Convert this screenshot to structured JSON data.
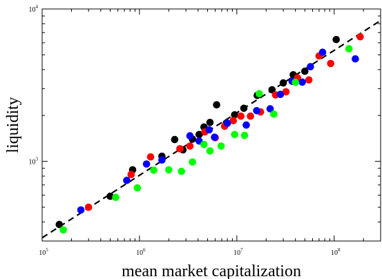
{
  "chart_data": {
    "type": "scatter",
    "xlabel": "mean market capitalization",
    "ylabel": "liquidity",
    "xscale": "log",
    "yscale": "log",
    "xlim": [
      100000,
      300000000
    ],
    "ylim": [
      300,
      10000
    ],
    "grid": false,
    "legend": "none",
    "x_tick_labels": [
      {
        "value": 100000,
        "base": "10",
        "exp": "5"
      },
      {
        "value": 1000000,
        "base": "10",
        "exp": "6"
      },
      {
        "value": 10000000,
        "base": "10",
        "exp": "7"
      },
      {
        "value": 100000000,
        "base": "10",
        "exp": "8"
      }
    ],
    "y_tick_labels": [
      {
        "value": 1000,
        "base": "10",
        "exp": "3"
      },
      {
        "value": 10000,
        "base": "10",
        "exp": "4"
      }
    ],
    "fit_line": {
      "style": "dashed",
      "color": "#000000",
      "points": [
        [
          100000,
          315
        ],
        [
          300000000,
          8400
        ]
      ]
    },
    "series": [
      {
        "color": "#000000",
        "points": [
          [
            150000,
            385
          ],
          [
            500000,
            590
          ],
          [
            850000,
            880
          ],
          [
            1700000,
            1080
          ],
          [
            2300000,
            1390
          ],
          [
            2800000,
            1190
          ],
          [
            3500000,
            1400
          ],
          [
            4100000,
            1500
          ],
          [
            4600000,
            1680
          ],
          [
            5300000,
            1800
          ],
          [
            6200000,
            2350
          ],
          [
            7800000,
            1780
          ],
          [
            9500000,
            2020
          ],
          [
            11800000,
            2230
          ],
          [
            16200000,
            2710
          ],
          [
            23000000,
            2950
          ],
          [
            30000000,
            3270
          ],
          [
            38000000,
            3700
          ],
          [
            50000000,
            3900
          ],
          [
            105000000,
            6300
          ]
        ]
      },
      {
        "color": "#ff0000",
        "points": [
          [
            300000,
            500
          ],
          [
            820000,
            820
          ],
          [
            1300000,
            1070
          ],
          [
            2600000,
            1210
          ],
          [
            3300000,
            1260
          ],
          [
            4700000,
            1560
          ],
          [
            6000000,
            1430
          ],
          [
            7500000,
            1700
          ],
          [
            9200000,
            1850
          ],
          [
            11000000,
            1980
          ],
          [
            13800000,
            1980
          ],
          [
            17500000,
            2110
          ],
          [
            25000000,
            2730
          ],
          [
            32000000,
            2860
          ],
          [
            42000000,
            3530
          ],
          [
            55000000,
            3420
          ],
          [
            70000000,
            4920
          ],
          [
            92000000,
            4390
          ],
          [
            185000000,
            6570
          ]
        ]
      },
      {
        "color": "#0000ff",
        "points": [
          [
            250000,
            480
          ],
          [
            740000,
            750
          ],
          [
            1180000,
            960
          ],
          [
            1700000,
            1020
          ],
          [
            3300000,
            1470
          ],
          [
            4100000,
            1360
          ],
          [
            5200000,
            1610
          ],
          [
            5900000,
            1440
          ],
          [
            8000000,
            1780
          ],
          [
            12500000,
            1730
          ],
          [
            16000000,
            2150
          ],
          [
            22000000,
            2210
          ],
          [
            28000000,
            2750
          ],
          [
            37000000,
            3350
          ],
          [
            47000000,
            3310
          ],
          [
            57000000,
            4180
          ],
          [
            76000000,
            5200
          ],
          [
            165000000,
            4700
          ]
        ]
      },
      {
        "color": "#00ff00",
        "points": [
          [
            165000,
            355
          ],
          [
            570000,
            580
          ],
          [
            950000,
            670
          ],
          [
            1400000,
            875
          ],
          [
            2000000,
            880
          ],
          [
            2700000,
            860
          ],
          [
            3500000,
            990
          ],
          [
            4600000,
            1290
          ],
          [
            5300000,
            1170
          ],
          [
            6900000,
            1260
          ],
          [
            9500000,
            1500
          ],
          [
            12000000,
            1480
          ],
          [
            17000000,
            2780
          ],
          [
            24000000,
            2040
          ],
          [
            40000000,
            3300
          ],
          [
            142000000,
            5480
          ]
        ]
      }
    ]
  }
}
